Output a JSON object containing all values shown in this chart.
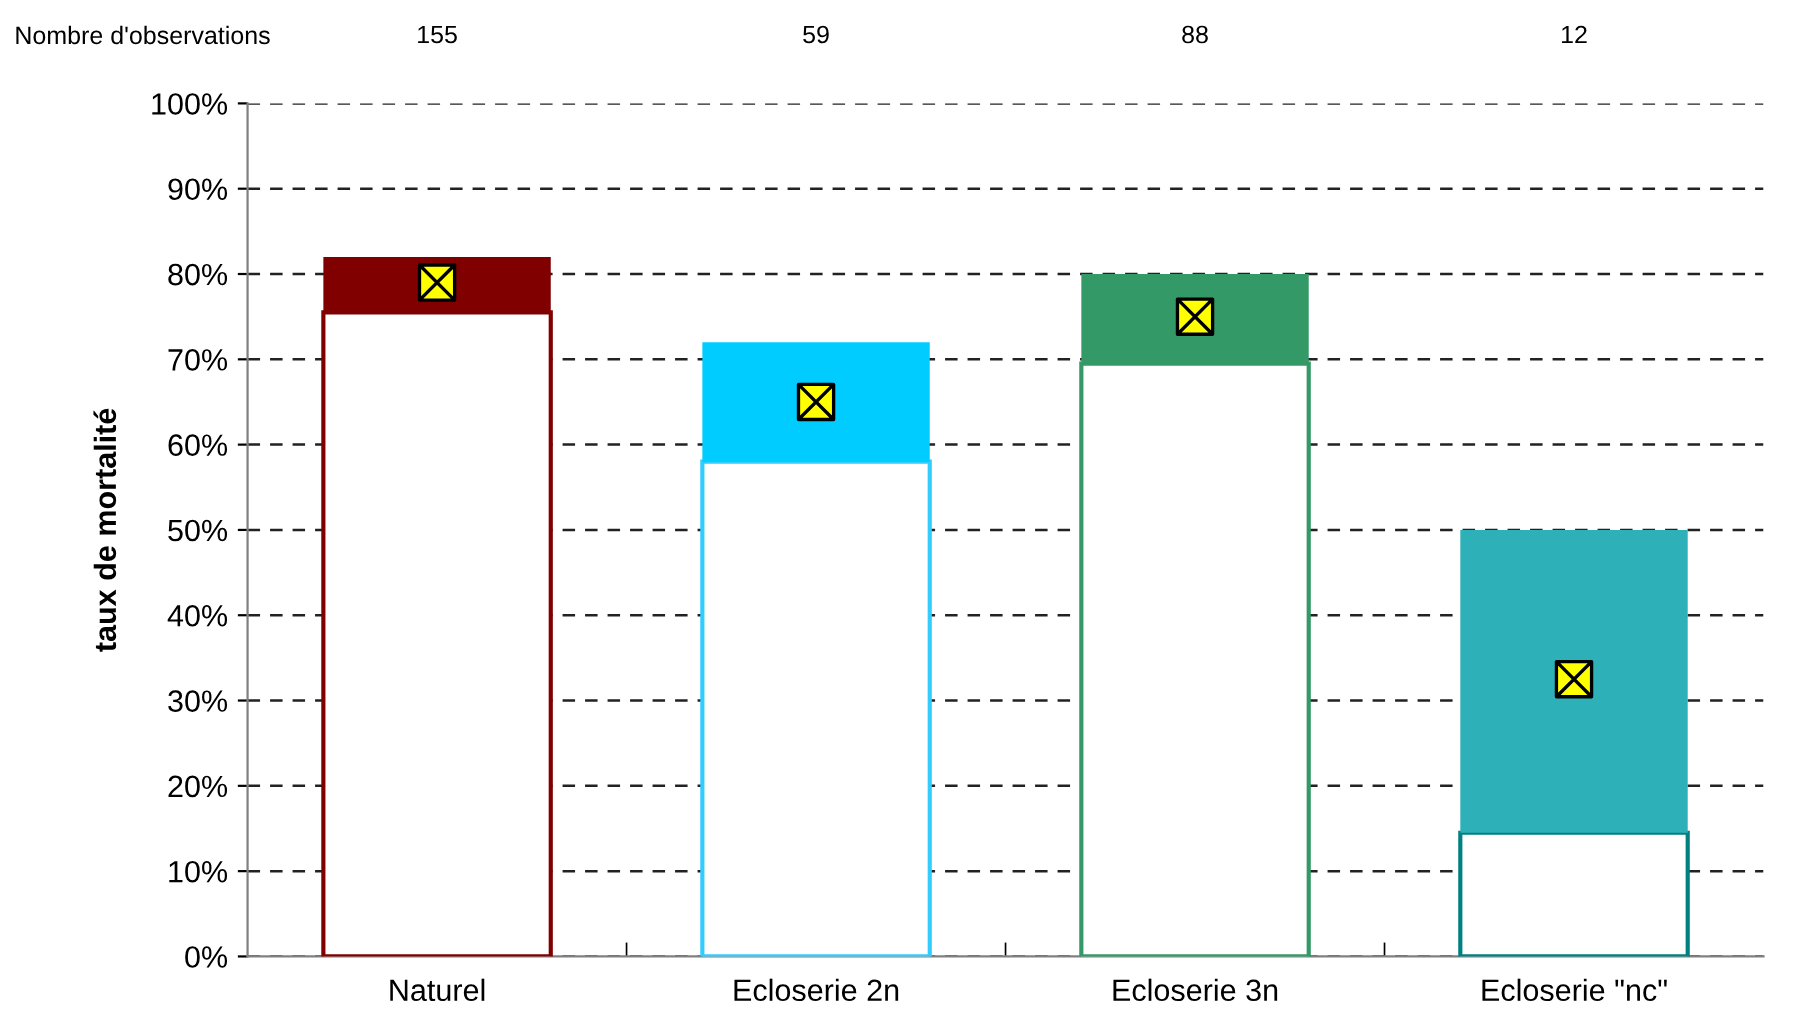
{
  "chart_data": {
    "type": "bar",
    "stacked": true,
    "ylabel": "taux de mortalité",
    "categories": [
      "Naturel",
      "Ecloserie 2n",
      "Ecloserie 3n",
      "Ecloserie \"nc\""
    ],
    "series": [
      {
        "color": "#ffffff",
        "colors": [
          "#800000",
          "#33ccff",
          "#339966",
          "#008080"
        ],
        "values": [
          75.5,
          58,
          69.5,
          14.5
        ]
      },
      {
        "colors": [
          "#800000",
          "#00ccff",
          "#339966",
          "#2eb0b8"
        ],
        "values": [
          6.5,
          14,
          10.5,
          35.5
        ]
      },
      {
        "type": "scatter",
        "color": "#ffff00",
        "marker": "cross",
        "x": [
          "Naturel",
          "Ecloserie 2n",
          "Ecloserie 3n",
          "Ecloserie \"nc\""
        ],
        "values": [
          79,
          65,
          75,
          32.5
        ]
      }
    ],
    "ylim": [
      0,
      100
    ],
    "yticks": [
      {
        "value": 0,
        "label": "0%"
      },
      {
        "value": 10,
        "label": "10%"
      },
      {
        "value": 20,
        "label": "20%"
      },
      {
        "value": 30,
        "label": "30%"
      },
      {
        "value": 40,
        "label": "40%"
      },
      {
        "value": 50,
        "label": "50%"
      },
      {
        "value": 60,
        "label": "60%"
      },
      {
        "value": 70,
        "label": "70%"
      },
      {
        "value": 80,
        "label": "80%"
      },
      {
        "value": 90,
        "label": "90%"
      },
      {
        "value": 100,
        "label": "100%"
      }
    ],
    "grid": "y",
    "line_style": "dashed",
    "legend": false,
    "annotations": [
      "Nombre d'observations",
      "155",
      "59",
      "88",
      "12"
    ]
  }
}
